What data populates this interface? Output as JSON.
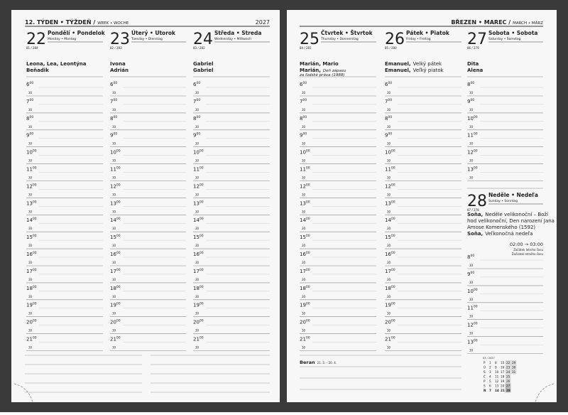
{
  "header": {
    "week": "12. TÝDEN • TÝŽDEŇ /",
    "week_sub": "WEEK • WOCHE",
    "year": "2027",
    "month": "BŘEZEN • MAREC /",
    "month_sub": "MARCH • MÄRZ"
  },
  "hours": [
    6,
    7,
    8,
    9,
    10,
    11,
    12,
    13,
    14,
    15,
    16,
    17,
    18,
    19,
    20,
    21
  ],
  "weekend_hours": [
    8,
    9,
    10,
    11,
    12,
    13
  ],
  "minutes": "00",
  "half": "30",
  "days": [
    {
      "number": "22",
      "title": "Pondělí • Pondelok",
      "subtitle": "Monday • Montag",
      "day_of_year": "81 / 284",
      "lines": [
        {
          "name": "Leona, Lea, Leontýna"
        },
        {
          "name": "Beňadik"
        }
      ]
    },
    {
      "number": "23",
      "title": "Úterý • Utorok",
      "subtitle": "Tuesday • Dienstag",
      "day_of_year": "82 / 283",
      "lines": [
        {
          "name": "Ivona"
        },
        {
          "name": "Adrián"
        }
      ]
    },
    {
      "number": "24",
      "title": "Středa • Streda",
      "subtitle": "Wednesday • Mittwoch",
      "day_of_year": "83 / 282",
      "lines": [
        {
          "name": "Gabriel"
        },
        {
          "name": "Gabriel"
        }
      ]
    },
    {
      "number": "25",
      "title": "Čtvrtek • Štvrtok",
      "subtitle": "Thursday • Donnerstag",
      "day_of_year": "84 / 281",
      "lines": [
        {
          "name": "Marián, Mario"
        },
        {
          "name": "Marián,",
          "note": "Deň zápasu"
        },
        {
          "note": "za ľudské práva (1988)"
        }
      ]
    },
    {
      "number": "26",
      "title": "Pátek • Piatok",
      "subtitle": "Friday • Freitag",
      "day_of_year": "85 / 280",
      "lines": [
        {
          "name": "Emanuel,",
          "note": "Velký pátek"
        },
        {
          "name": "Emanuel,",
          "note": "Veľký piatok"
        }
      ]
    },
    {
      "number": "27",
      "title": "Sobota • Sobota",
      "subtitle": "Saturday • Samstag",
      "day_of_year": "86 / 279",
      "lines": [
        {
          "name": "Dita"
        },
        {
          "name": "Alena"
        }
      ]
    },
    {
      "number": "28",
      "title": "Neděle • Nedeľa",
      "subtitle": "Sunday • Sonntag",
      "day_of_year": "87 / 278",
      "lines": [
        {
          "name": "Soňa,",
          "note": "Neděle velikonoční – Boží"
        },
        {
          "note": "hod velikonoční, Den narození Jana"
        },
        {
          "note": "Amose Komenského (1592)"
        },
        {
          "name": "Soňa,",
          "note": "Veľkonočná nedeľa"
        }
      ]
    }
  ],
  "time_change": {
    "time": "02:00 → 03:00",
    "cz": "Začátek letního času",
    "sk": "Začiatok letného času"
  },
  "footer": {
    "zodiac": "Beran",
    "zodiac_dates": "21. 3. – 20. 4."
  },
  "mini_calendar": {
    "title": "03 / 2027",
    "rows": [
      [
        "P",
        "1",
        "8",
        "15",
        "22",
        "29"
      ],
      [
        "Ú",
        "2",
        "9",
        "16",
        "23",
        "30"
      ],
      [
        "S",
        "3",
        "10",
        "17",
        "24",
        "31"
      ],
      [
        "Č",
        "4",
        "11",
        "18",
        "25"
      ],
      [
        "P",
        "5",
        "12",
        "19",
        "26"
      ],
      [
        "S",
        "6",
        "13",
        "20",
        "27"
      ],
      [
        "N",
        "7",
        "14",
        "21",
        "28"
      ]
    ]
  }
}
